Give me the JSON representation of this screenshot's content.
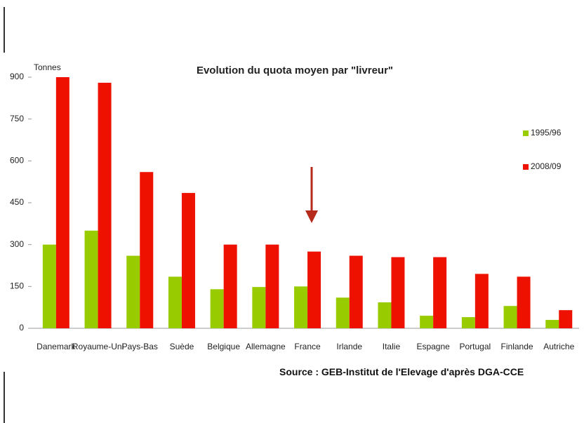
{
  "chart_data": {
    "type": "bar",
    "title": "Evolution du quota moyen par \"livreur\"",
    "ylabel": "Tonnes",
    "categories": [
      "Danemark",
      "Royaume-Uni",
      "Pays-Bas",
      "Suède",
      "Belgique",
      "Allemagne",
      "France",
      "Irlande",
      "Italie",
      "Espagne",
      "Portugal",
      "Finlande",
      "Autriche"
    ],
    "series": [
      {
        "name": "1995/96",
        "color": "#99cc00",
        "values": [
          300,
          350,
          260,
          185,
          140,
          148,
          150,
          110,
          93,
          45,
          40,
          80,
          30
        ]
      },
      {
        "name": "2008/09",
        "color": "#ee1100",
        "values": [
          900,
          880,
          560,
          485,
          300,
          300,
          275,
          260,
          255,
          255,
          195,
          185,
          65
        ]
      }
    ],
    "ylim": [
      0,
      900
    ],
    "yticks": [
      0,
      150,
      300,
      450,
      600,
      750,
      900
    ],
    "source": "Source : GEB-Institut de l'Elevage d'après DGA-CCE"
  }
}
